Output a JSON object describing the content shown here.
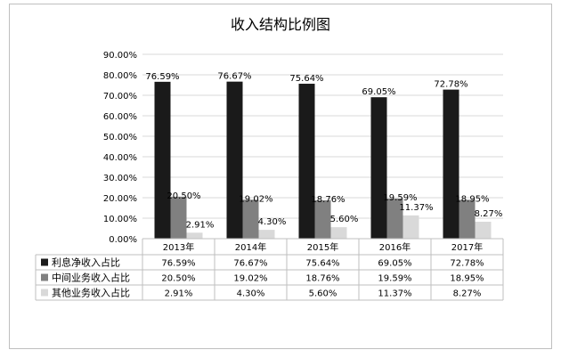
{
  "chart_data": {
    "type": "bar",
    "title": "收入结构比例图",
    "categories": [
      "2013年",
      "2014年",
      "2015年",
      "2016年",
      "2017年"
    ],
    "ylim": [
      0,
      90
    ],
    "yticks": [
      "0.00%",
      "10.00%",
      "20.00%",
      "30.00%",
      "40.00%",
      "50.00%",
      "60.00%",
      "70.00%",
      "80.00%",
      "90.00%"
    ],
    "grid": true,
    "legend": "data-table",
    "series": [
      {
        "name": "利息净收入占比",
        "color": "#1a1a1a",
        "values": [
          76.59,
          76.67,
          75.64,
          69.05,
          72.78
        ],
        "labels": [
          "76.59%",
          "76.67%",
          "75.64%",
          "69.05%",
          "72.78%"
        ]
      },
      {
        "name": "中间业务收入占比",
        "color": "#808080",
        "values": [
          20.5,
          19.02,
          18.76,
          19.59,
          18.95
        ],
        "labels": [
          "20.50%",
          "19.02%",
          "18.76%",
          "19.59%",
          "18.95%"
        ]
      },
      {
        "name": "其他业务收入占比",
        "color": "#d9d9d9",
        "values": [
          2.91,
          4.3,
          5.6,
          11.37,
          8.27
        ],
        "labels": [
          "2.91%",
          "4.30%",
          "5.60%",
          "11.37%",
          "8.27%"
        ]
      }
    ]
  }
}
